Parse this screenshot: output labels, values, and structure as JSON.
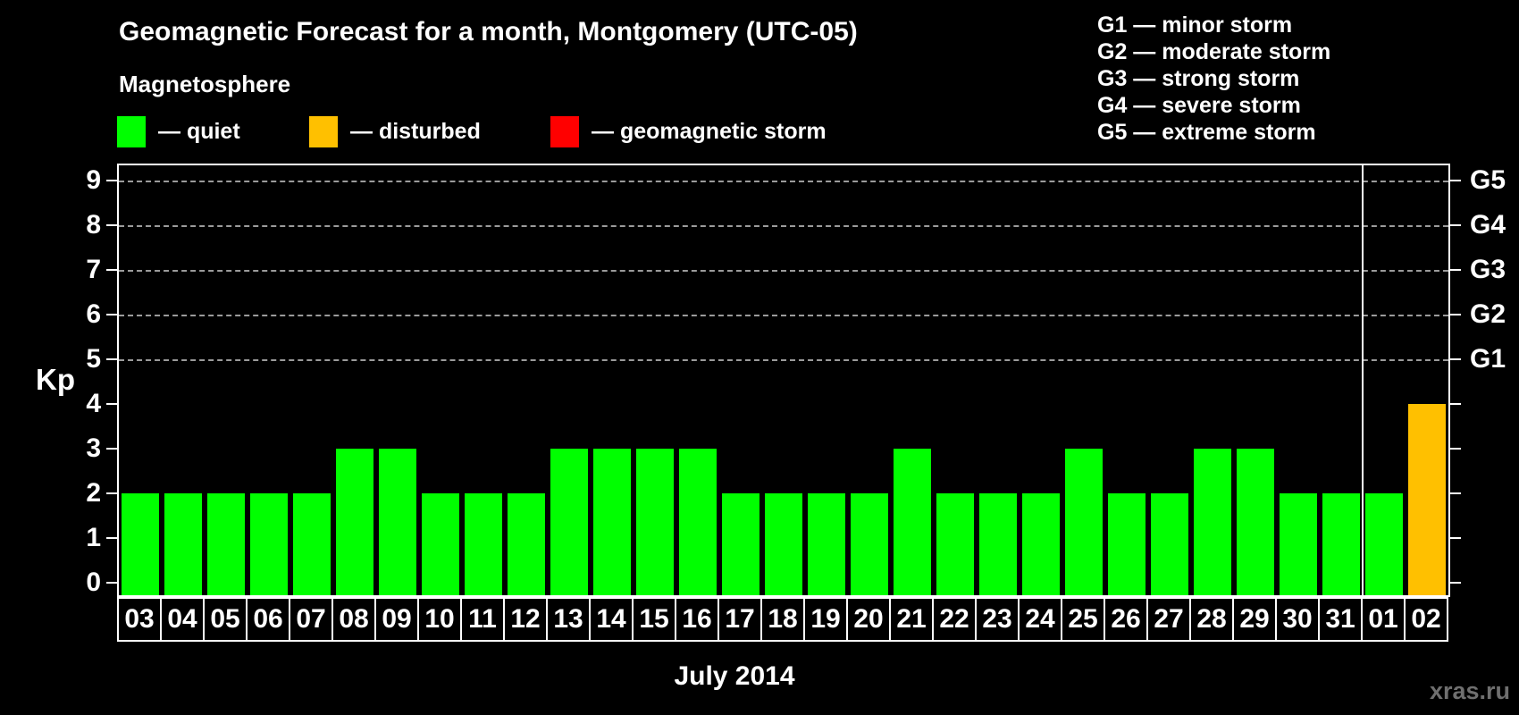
{
  "header": {
    "title": "Geomagnetic Forecast for a month, Montgomery (UTC-05)",
    "subtitle": "Magnetosphere"
  },
  "legend": {
    "items": [
      {
        "key": "quiet",
        "label": "— quiet",
        "color": "#00ff00"
      },
      {
        "key": "disturbed",
        "label": "— disturbed",
        "color": "#ffc000"
      },
      {
        "key": "storm",
        "label": "— geomagnetic storm",
        "color": "#ff0000"
      }
    ]
  },
  "g_legend": {
    "lines": [
      "G1 — minor storm",
      "G2 — moderate storm",
      "G3 — strong storm",
      "G4 — severe storm",
      "G5 — extreme storm"
    ]
  },
  "chart_data": {
    "type": "bar",
    "title": "Geomagnetic Forecast for a month, Montgomery (UTC-05)",
    "ylabel": "Kp",
    "xlabel": "July 2014",
    "ylim": [
      0,
      9
    ],
    "yticks": [
      0,
      1,
      2,
      3,
      4,
      5,
      6,
      7,
      8,
      9
    ],
    "grid": "dashed horizontal lines at Kp 5-9 only",
    "legend_position": "top-left",
    "right_axis": [
      {
        "kp": 5,
        "label": "G1"
      },
      {
        "kp": 6,
        "label": "G2"
      },
      {
        "kp": 7,
        "label": "G3"
      },
      {
        "kp": 8,
        "label": "G4"
      },
      {
        "kp": 9,
        "label": "G5"
      }
    ],
    "dashed_gridlines_at_kp": [
      5,
      6,
      7,
      8,
      9
    ],
    "categories": [
      "03",
      "04",
      "05",
      "06",
      "07",
      "08",
      "09",
      "10",
      "11",
      "12",
      "13",
      "14",
      "15",
      "16",
      "17",
      "18",
      "19",
      "20",
      "21",
      "22",
      "23",
      "24",
      "25",
      "26",
      "27",
      "28",
      "29",
      "30",
      "31",
      "01",
      "02"
    ],
    "values": [
      2,
      2,
      2,
      2,
      2,
      3,
      3,
      2,
      2,
      2,
      3,
      3,
      3,
      3,
      2,
      2,
      2,
      2,
      3,
      2,
      2,
      2,
      3,
      2,
      2,
      3,
      3,
      2,
      2,
      2,
      4
    ],
    "statuses": [
      "quiet",
      "quiet",
      "quiet",
      "quiet",
      "quiet",
      "quiet",
      "quiet",
      "quiet",
      "quiet",
      "quiet",
      "quiet",
      "quiet",
      "quiet",
      "quiet",
      "quiet",
      "quiet",
      "quiet",
      "quiet",
      "quiet",
      "quiet",
      "quiet",
      "quiet",
      "quiet",
      "quiet",
      "quiet",
      "quiet",
      "quiet",
      "quiet",
      "quiet",
      "quiet",
      "disturbed"
    ],
    "status_colors": {
      "quiet": "#00ff00",
      "disturbed": "#ffc000",
      "storm": "#ff0000"
    },
    "month_separator_before_index": 29
  },
  "footer": {
    "month_label": "July 2014",
    "watermark": "xras.ru"
  }
}
